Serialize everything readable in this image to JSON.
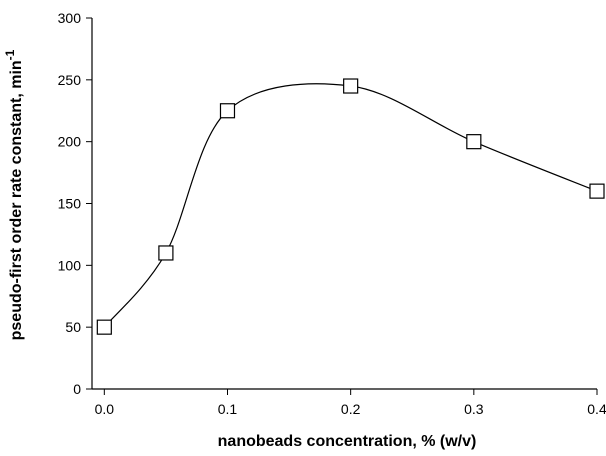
{
  "chart_data": {
    "type": "scatter",
    "xlabel": "nanobeads concentration, % (w/v)",
    "ylabel_main": "pseudo-first order rate constant, min",
    "ylabel_sup": "-1",
    "xlim": [
      -0.01,
      0.4
    ],
    "ylim": [
      0,
      300
    ],
    "xticks": [
      0.0,
      0.1,
      0.2,
      0.3,
      0.4
    ],
    "xtick_labels": [
      "0.0",
      "0.1",
      "0.2",
      "0.3",
      "0.4"
    ],
    "yticks": [
      0,
      50,
      100,
      150,
      200,
      250,
      300
    ],
    "ytick_labels": [
      "0",
      "50",
      "100",
      "150",
      "200",
      "250",
      "300"
    ],
    "grid": false,
    "smooth_curve": true,
    "marker": "open-square",
    "series": [
      {
        "x": [
          0.0,
          0.05,
          0.1,
          0.2,
          0.3,
          0.4
        ],
        "y": [
          50,
          110,
          225,
          245,
          200,
          160
        ]
      }
    ]
  }
}
